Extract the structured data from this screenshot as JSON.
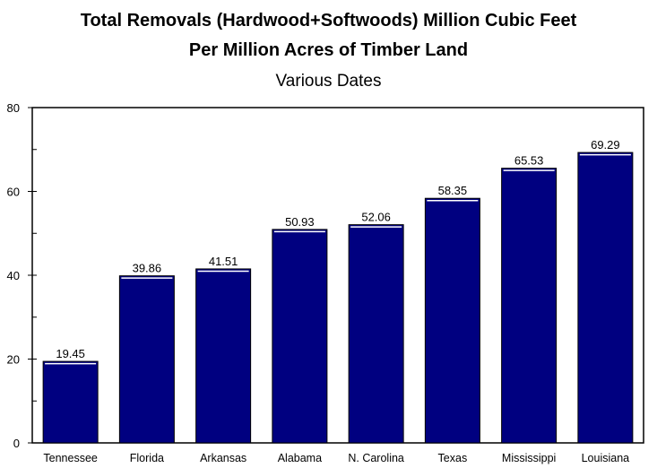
{
  "chart_data": {
    "type": "bar",
    "title": "Total Removals (Hardwood+Softwoods) Million Cubic Feet",
    "subtitle_line2": "Per Million Acres of Timber Land",
    "subtitle": "Various Dates",
    "xlabel": "",
    "ylabel": "",
    "ylim": [
      0,
      80
    ],
    "yticks": [
      0,
      20,
      40,
      60,
      80
    ],
    "categories": [
      "Tennessee",
      "Florida",
      "Arkansas",
      "Alabama",
      "N. Carolina",
      "Texas",
      "Mississippi",
      "Louisiana"
    ],
    "values": [
      19.45,
      39.86,
      41.51,
      50.93,
      52.06,
      58.35,
      65.53,
      69.29
    ],
    "value_labels": [
      "19.45",
      "39.86",
      "41.51",
      "50.93",
      "52.06",
      "58.35",
      "65.53",
      "69.29"
    ],
    "bar_color": "#000080",
    "grid": false,
    "legend": "none"
  }
}
